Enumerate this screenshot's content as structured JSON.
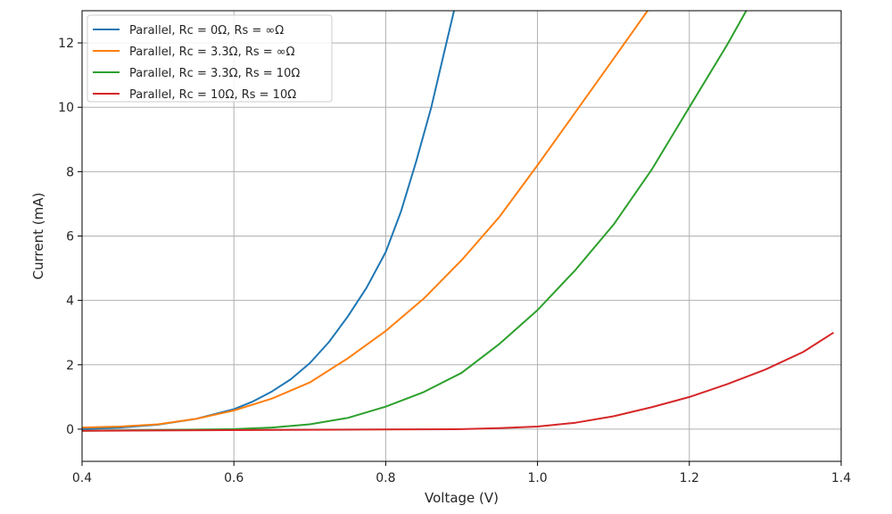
{
  "chart_data": {
    "type": "line",
    "title": "",
    "xlabel": "Voltage (V)",
    "ylabel": "Current (mA)",
    "xlim": [
      0.4,
      1.4
    ],
    "ylim": [
      -1.0,
      13.0
    ],
    "xticks": [
      0.4,
      0.6,
      0.8,
      1.0,
      1.2,
      1.4
    ],
    "yticks": [
      0,
      2,
      4,
      6,
      8,
      10,
      12
    ],
    "grid": true,
    "legend_position": "top-left",
    "series": [
      {
        "name": "Parallel, Rc = 0Ω, Rs = ∞Ω",
        "color": "#1f77b4",
        "x": [
          0.4,
          0.45,
          0.5,
          0.55,
          0.6,
          0.625,
          0.65,
          0.675,
          0.7,
          0.725,
          0.75,
          0.775,
          0.8,
          0.82,
          0.84,
          0.86,
          0.875,
          0.89
        ],
        "y": [
          0.0,
          0.05,
          0.14,
          0.32,
          0.62,
          0.86,
          1.17,
          1.55,
          2.05,
          2.7,
          3.5,
          4.4,
          5.5,
          6.75,
          8.3,
          10.0,
          11.5,
          13.0
        ]
      },
      {
        "name": "Parallel, Rc = 3.3Ω, Rs = ∞Ω",
        "color": "#ff7f0e",
        "x": [
          0.4,
          0.45,
          0.5,
          0.55,
          0.6,
          0.65,
          0.7,
          0.75,
          0.8,
          0.85,
          0.9,
          0.95,
          1.0,
          1.05,
          1.1,
          1.145
        ],
        "y": [
          0.05,
          0.08,
          0.15,
          0.32,
          0.58,
          0.95,
          1.45,
          2.2,
          3.05,
          4.05,
          5.25,
          6.6,
          8.2,
          9.85,
          11.5,
          13.0
        ]
      },
      {
        "name": "Parallel, Rc = 3.3Ω, Rs = 10Ω",
        "color": "#2ca02c",
        "x": [
          0.4,
          0.5,
          0.6,
          0.65,
          0.7,
          0.75,
          0.8,
          0.85,
          0.9,
          0.95,
          1.0,
          1.05,
          1.1,
          1.15,
          1.2,
          1.25,
          1.275
        ],
        "y": [
          -0.05,
          -0.03,
          0.0,
          0.05,
          0.15,
          0.35,
          0.7,
          1.15,
          1.75,
          2.65,
          3.7,
          4.95,
          6.35,
          8.05,
          10.0,
          11.95,
          13.0
        ]
      },
      {
        "name": "Parallel, Rc = 10Ω, Rs = 10Ω",
        "color": "#d62728",
        "x": [
          0.4,
          0.5,
          0.6,
          0.7,
          0.8,
          0.9,
          0.95,
          1.0,
          1.05,
          1.1,
          1.15,
          1.2,
          1.25,
          1.3,
          1.35,
          1.39
        ],
        "y": [
          -0.05,
          -0.04,
          -0.03,
          -0.02,
          -0.01,
          0.0,
          0.03,
          0.08,
          0.2,
          0.4,
          0.68,
          1.0,
          1.4,
          1.85,
          2.4,
          3.0
        ]
      }
    ]
  }
}
